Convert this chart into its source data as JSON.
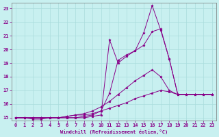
{
  "xlabel": "Windchill (Refroidissement éolien,°C)",
  "background_color": "#c8f0f0",
  "line_color": "#880088",
  "grid_color": "#aadddd",
  "xlim": [
    -0.5,
    23.5
  ],
  "ylim": [
    14.8,
    23.4
  ],
  "xticks": [
    0,
    1,
    2,
    3,
    4,
    5,
    6,
    7,
    8,
    9,
    10,
    11,
    12,
    13,
    14,
    15,
    16,
    17,
    18,
    19,
    20,
    21,
    22,
    23
  ],
  "yticks": [
    15,
    16,
    17,
    18,
    19,
    20,
    21,
    22,
    23
  ],
  "x_values": [
    0,
    1,
    2,
    3,
    4,
    5,
    6,
    7,
    8,
    9,
    10,
    11,
    12,
    13,
    14,
    15,
    16,
    17,
    18,
    19,
    20,
    21,
    22,
    23
  ],
  "series": [
    [
      15.0,
      15.0,
      15.0,
      15.0,
      15.0,
      15.0,
      15.0,
      15.0,
      15.0,
      15.1,
      15.2,
      20.7,
      19.0,
      19.5,
      19.9,
      21.2,
      23.2,
      21.4,
      19.3,
      16.7,
      16.7,
      16.7,
      16.7,
      16.7
    ],
    [
      15.0,
      15.0,
      15.0,
      15.0,
      15.0,
      15.0,
      15.0,
      15.0,
      15.1,
      15.2,
      15.5,
      16.8,
      19.2,
      19.6,
      19.9,
      20.3,
      21.3,
      21.5,
      19.3,
      16.7,
      16.7,
      16.7,
      16.7,
      16.7
    ],
    [
      15.0,
      15.0,
      15.0,
      15.0,
      15.0,
      15.0,
      15.1,
      15.2,
      15.3,
      15.5,
      15.8,
      16.2,
      16.7,
      17.2,
      17.7,
      18.1,
      18.5,
      18.0,
      17.0,
      16.7,
      16.7,
      16.7,
      16.7,
      16.7
    ],
    [
      15.0,
      15.0,
      14.9,
      14.9,
      15.0,
      15.0,
      15.1,
      15.2,
      15.2,
      15.3,
      15.5,
      15.7,
      15.9,
      16.1,
      16.4,
      16.6,
      16.8,
      17.0,
      16.9,
      16.7,
      16.7,
      16.7,
      16.7,
      16.7
    ]
  ]
}
